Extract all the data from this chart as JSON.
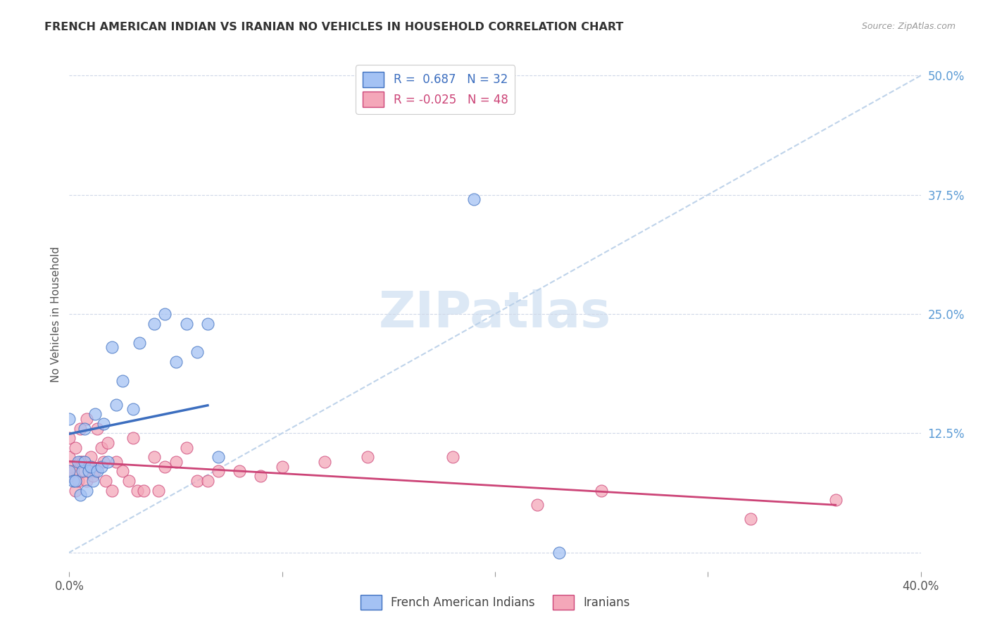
{
  "title": "FRENCH AMERICAN INDIAN VS IRANIAN NO VEHICLES IN HOUSEHOLD CORRELATION CHART",
  "source": "Source: ZipAtlas.com",
  "ylabel": "No Vehicles in Household",
  "xlim": [
    0.0,
    0.4
  ],
  "ylim": [
    -0.02,
    0.52
  ],
  "xtick_positions": [
    0.0,
    0.1,
    0.2,
    0.3,
    0.4
  ],
  "xtick_labels": [
    "0.0%",
    "",
    "",
    "",
    "40.0%"
  ],
  "ytick_right_positions": [
    0.0,
    0.125,
    0.25,
    0.375,
    0.5
  ],
  "ytick_right_labels": [
    "",
    "12.5%",
    "25.0%",
    "37.5%",
    "50.0%"
  ],
  "blue_color": "#a4c2f4",
  "pink_color": "#f4a7b9",
  "blue_line_color": "#3c6ebf",
  "pink_line_color": "#cc4477",
  "dashed_line_color": "#b8cfe8",
  "grid_color": "#d0d8e8",
  "title_color": "#333333",
  "right_tick_color": "#5b9bd5",
  "watermark_color": "#dce8f5",
  "fai_x": [
    0.0,
    0.0,
    0.002,
    0.003,
    0.004,
    0.005,
    0.006,
    0.007,
    0.007,
    0.008,
    0.009,
    0.01,
    0.011,
    0.012,
    0.013,
    0.015,
    0.016,
    0.018,
    0.02,
    0.022,
    0.025,
    0.03,
    0.033,
    0.04,
    0.045,
    0.05,
    0.055,
    0.06,
    0.065,
    0.07,
    0.19,
    0.23
  ],
  "fai_y": [
    0.085,
    0.14,
    0.075,
    0.075,
    0.095,
    0.06,
    0.085,
    0.095,
    0.13,
    0.065,
    0.085,
    0.09,
    0.075,
    0.145,
    0.085,
    0.09,
    0.135,
    0.095,
    0.215,
    0.155,
    0.18,
    0.15,
    0.22,
    0.24,
    0.25,
    0.2,
    0.24,
    0.21,
    0.24,
    0.1,
    0.37,
    0.0
  ],
  "iran_x": [
    0.0,
    0.0,
    0.0,
    0.001,
    0.002,
    0.003,
    0.003,
    0.004,
    0.005,
    0.005,
    0.006,
    0.007,
    0.008,
    0.008,
    0.009,
    0.01,
    0.011,
    0.012,
    0.013,
    0.015,
    0.016,
    0.017,
    0.018,
    0.02,
    0.022,
    0.025,
    0.028,
    0.03,
    0.032,
    0.035,
    0.04,
    0.042,
    0.045,
    0.05,
    0.055,
    0.06,
    0.065,
    0.07,
    0.08,
    0.09,
    0.1,
    0.12,
    0.14,
    0.18,
    0.22,
    0.25,
    0.32,
    0.36
  ],
  "iran_y": [
    0.08,
    0.1,
    0.12,
    0.09,
    0.085,
    0.065,
    0.11,
    0.075,
    0.095,
    0.13,
    0.095,
    0.085,
    0.075,
    0.14,
    0.09,
    0.1,
    0.08,
    0.085,
    0.13,
    0.11,
    0.095,
    0.075,
    0.115,
    0.065,
    0.095,
    0.085,
    0.075,
    0.12,
    0.065,
    0.065,
    0.1,
    0.065,
    0.09,
    0.095,
    0.11,
    0.075,
    0.075,
    0.085,
    0.085,
    0.08,
    0.09,
    0.095,
    0.1,
    0.1,
    0.05,
    0.065,
    0.035,
    0.055
  ]
}
